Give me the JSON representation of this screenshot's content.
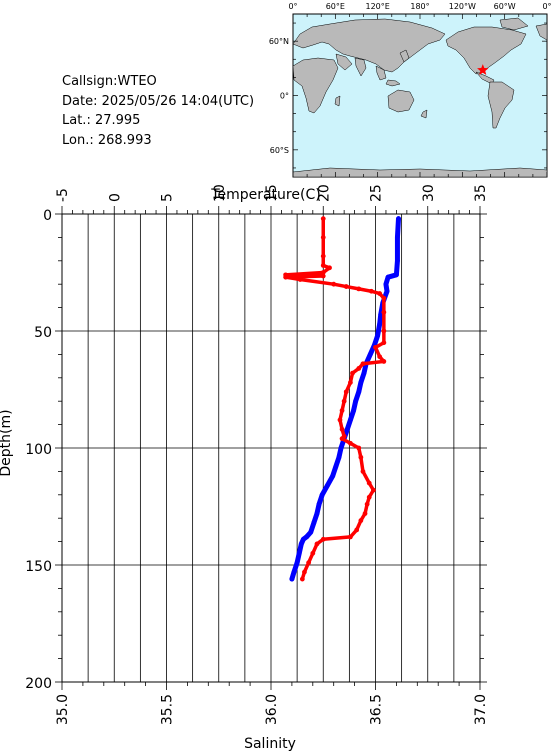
{
  "station": {
    "callsign": "Callsign:WTEO",
    "date": "Date:  2025/05/26 14:04(UTC)",
    "lat": "Lat.:  27.995",
    "lon": "Lon.:  268.993"
  },
  "map": {
    "top_labels": [
      "0°",
      "60°E",
      "120°E",
      "180°",
      "120°W",
      "60°W",
      "0°"
    ],
    "left_labels": [
      "60°N",
      "0°",
      "60°S"
    ],
    "ocean_color": "#cdf3fb",
    "land_color": "#b9b9b9",
    "marker_color": "#ff0000",
    "marker": {
      "lon": 268.993,
      "lat": 27.995
    }
  },
  "chart_data": {
    "type": "line",
    "temperature_axis": {
      "label": "Temperature(C)",
      "range": [
        -5,
        35
      ],
      "ticks": [
        "-5",
        "0",
        "5",
        "10",
        "15",
        "20",
        "25",
        "30",
        "35"
      ]
    },
    "salinity_axis": {
      "label": "Salinity",
      "range": [
        35.0,
        37.0
      ],
      "ticks": [
        "35.0",
        "35.5",
        "36.0",
        "36.5",
        "37.0"
      ]
    },
    "depth_axis": {
      "label": "Depth(m)",
      "range": [
        0,
        200
      ],
      "ticks": [
        "0",
        "50",
        "100",
        "150",
        "200"
      ]
    },
    "grid": true,
    "series": [
      {
        "quantity": "temperature",
        "color": "#0000ff",
        "points": [
          [
            27.2,
            2
          ],
          [
            27.1,
            10
          ],
          [
            27.1,
            20
          ],
          [
            27.0,
            26
          ],
          [
            26.2,
            27
          ],
          [
            26.0,
            30
          ],
          [
            26.1,
            33
          ],
          [
            25.7,
            38
          ],
          [
            25.5,
            43
          ],
          [
            25.4,
            47
          ],
          [
            25.2,
            52
          ],
          [
            24.9,
            56
          ],
          [
            24.5,
            60
          ],
          [
            24.1,
            64
          ],
          [
            23.9,
            68
          ],
          [
            23.6,
            72
          ],
          [
            23.4,
            76
          ],
          [
            23.1,
            80
          ],
          [
            22.9,
            84
          ],
          [
            22.6,
            88
          ],
          [
            22.3,
            92
          ],
          [
            22.0,
            96
          ],
          [
            21.7,
            100
          ],
          [
            21.5,
            104
          ],
          [
            21.2,
            108
          ],
          [
            20.9,
            112
          ],
          [
            20.4,
            116
          ],
          [
            19.9,
            120
          ],
          [
            19.6,
            124
          ],
          [
            19.4,
            128
          ],
          [
            19.1,
            132
          ],
          [
            18.8,
            136
          ],
          [
            18.4,
            138
          ],
          [
            18.1,
            139
          ],
          [
            17.9,
            141
          ],
          [
            17.7,
            145
          ],
          [
            17.5,
            149
          ],
          [
            17.2,
            153
          ],
          [
            17.0,
            156
          ]
        ]
      },
      {
        "quantity": "salinity",
        "color": "#ff0000",
        "points": [
          [
            36.25,
            2
          ],
          [
            36.25,
            10
          ],
          [
            36.25,
            18
          ],
          [
            36.25,
            22
          ],
          [
            36.28,
            23
          ],
          [
            36.25,
            25
          ],
          [
            36.07,
            26
          ],
          [
            36.2,
            26
          ],
          [
            36.25,
            26.5
          ],
          [
            36.07,
            27
          ],
          [
            36.14,
            28
          ],
          [
            36.3,
            30
          ],
          [
            36.36,
            31
          ],
          [
            36.42,
            32
          ],
          [
            36.48,
            33
          ],
          [
            36.52,
            34
          ],
          [
            36.54,
            36
          ],
          [
            36.54,
            42
          ],
          [
            36.54,
            50
          ],
          [
            36.54,
            55
          ],
          [
            36.5,
            57
          ],
          [
            36.52,
            61
          ],
          [
            36.54,
            63
          ],
          [
            36.44,
            64
          ],
          [
            36.42,
            66
          ],
          [
            36.39,
            68
          ],
          [
            36.38,
            72
          ],
          [
            36.36,
            76
          ],
          [
            36.35,
            80
          ],
          [
            36.34,
            84
          ],
          [
            36.33,
            88
          ],
          [
            36.34,
            92
          ],
          [
            36.35,
            95
          ],
          [
            36.34,
            96
          ],
          [
            36.38,
            98
          ],
          [
            36.42,
            100
          ],
          [
            36.43,
            104
          ],
          [
            36.44,
            110
          ],
          [
            36.47,
            115
          ],
          [
            36.49,
            118
          ],
          [
            36.47,
            121
          ],
          [
            36.46,
            124
          ],
          [
            36.45,
            128
          ],
          [
            36.43,
            131
          ],
          [
            36.41,
            135
          ],
          [
            36.38,
            138
          ],
          [
            36.25,
            139
          ],
          [
            36.22,
            141
          ],
          [
            36.2,
            145
          ],
          [
            36.18,
            149
          ],
          [
            36.16,
            153
          ],
          [
            36.15,
            156
          ]
        ]
      }
    ]
  }
}
